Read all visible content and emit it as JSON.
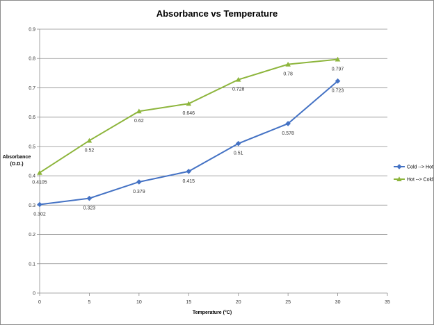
{
  "chart_data": {
    "type": "line",
    "title": "Absorbance vs Temperature",
    "xlabel": "Temperature (°C)",
    "ylabel_lines": [
      "Absorbance",
      "(O.D.)"
    ],
    "xlim": [
      0,
      35
    ],
    "ylim": [
      0,
      0.9
    ],
    "xticks": [
      0,
      5,
      10,
      15,
      20,
      25,
      30,
      35
    ],
    "yticks": [
      0,
      0.1,
      0.2,
      0.3,
      0.4,
      0.5,
      0.6,
      0.7,
      0.8,
      0.9
    ],
    "ytick_labels": [
      "0",
      "0.1",
      "0.2",
      "0.3",
      "0.4",
      "0.5",
      "0.6",
      "0.7",
      "0.8",
      "0.9"
    ],
    "grid": true,
    "legend_position": "right",
    "x": [
      0,
      5,
      10,
      15,
      20,
      25,
      30
    ],
    "series": [
      {
        "name": "Cold --> Hot",
        "color": "#4472c4",
        "marker": "diamond",
        "label_position": "below",
        "values": [
          0.302,
          0.323,
          0.379,
          0.415,
          0.51,
          0.578,
          0.723
        ],
        "labels": [
          "0.302",
          "0.323",
          "0.379",
          "0.415",
          "0.51",
          "0.578",
          "0.723"
        ]
      },
      {
        "name": "Hot --> Cold",
        "color": "#8db53c",
        "marker": "triangle",
        "label_position": "below",
        "values": [
          0.4105,
          0.52,
          0.62,
          0.646,
          0.728,
          0.78,
          0.797
        ],
        "labels": [
          "0.4105",
          "0.52",
          "0.62",
          "0.646",
          "0.728",
          "0.78",
          "0.797"
        ]
      }
    ]
  }
}
